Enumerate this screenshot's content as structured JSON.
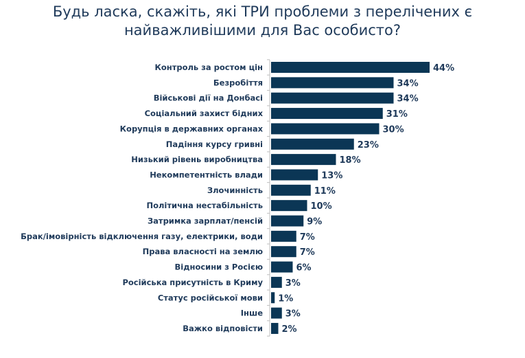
{
  "chart_data": {
    "type": "bar",
    "orientation": "horizontal",
    "title": "Будь ласка, скажіть, які ТРИ проблеми з перелічених є найважливішими для Вас особисто?",
    "categories": [
      "Контроль за ростом цін",
      "Безробіття",
      "Військові дії на Донбасі",
      "Соціальний захист бідних",
      "Корупція в державних органах",
      "Падіння курсу гривні",
      "Низький рівень виробництва",
      "Некомпетентність влади",
      "Злочинність",
      "Політична нестабільність",
      "Затримка зарплат/пенсій",
      "Брак/імовірність відключення газу, електрики, води",
      "Права власності на землю",
      "Відносини з Росією",
      "Російська присутність в Криму",
      "Статус російської мови",
      "Інше",
      "Важко відповісти"
    ],
    "values": [
      44,
      34,
      34,
      31,
      30,
      23,
      18,
      13,
      11,
      10,
      9,
      7,
      7,
      6,
      3,
      1,
      3,
      2
    ],
    "value_labels": [
      "44%",
      "34%",
      "34%",
      "31%",
      "30%",
      "23%",
      "18%",
      "13%",
      "11%",
      "10%",
      "9%",
      "7%",
      "7%",
      "6%",
      "3%",
      "1%",
      "3%",
      "2%"
    ],
    "xlim": [
      0,
      70
    ],
    "grid": false,
    "legend": "none",
    "colors": {
      "bar": "#0b3655",
      "text": "#1f3a5a",
      "axis": "#bfbfbf"
    }
  }
}
